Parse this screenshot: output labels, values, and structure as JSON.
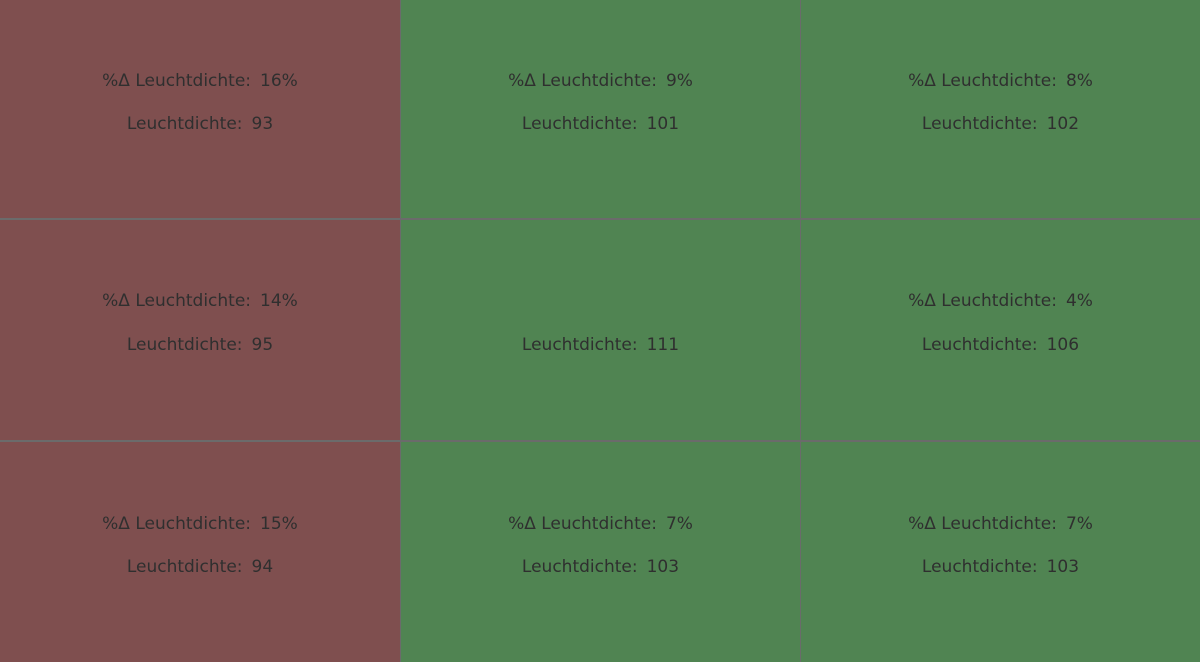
{
  "colors": {
    "bad": "#7f4f4f",
    "good": "#508452",
    "grid_lines": "#6b6b6b",
    "text": "#2f2f2f"
  },
  "labels": {
    "delta": "%Δ Leuchtdichte:",
    "luminance": "Leuchtdichte:"
  },
  "cells": [
    {
      "row": 1,
      "col": 1,
      "status": "bad",
      "delta": "16%",
      "luminance": "93"
    },
    {
      "row": 1,
      "col": 2,
      "status": "good",
      "delta": "9%",
      "luminance": "101"
    },
    {
      "row": 1,
      "col": 3,
      "status": "good",
      "delta": "8%",
      "luminance": "102"
    },
    {
      "row": 2,
      "col": 1,
      "status": "bad",
      "delta": "14%",
      "luminance": "95"
    },
    {
      "row": 2,
      "col": 2,
      "status": "good",
      "delta": "",
      "luminance": "111"
    },
    {
      "row": 2,
      "col": 3,
      "status": "good",
      "delta": "4%",
      "luminance": "106"
    },
    {
      "row": 3,
      "col": 1,
      "status": "bad",
      "delta": "15%",
      "luminance": "94"
    },
    {
      "row": 3,
      "col": 2,
      "status": "good",
      "delta": "7%",
      "luminance": "103"
    },
    {
      "row": 3,
      "col": 3,
      "status": "good",
      "delta": "7%",
      "luminance": "103"
    }
  ]
}
